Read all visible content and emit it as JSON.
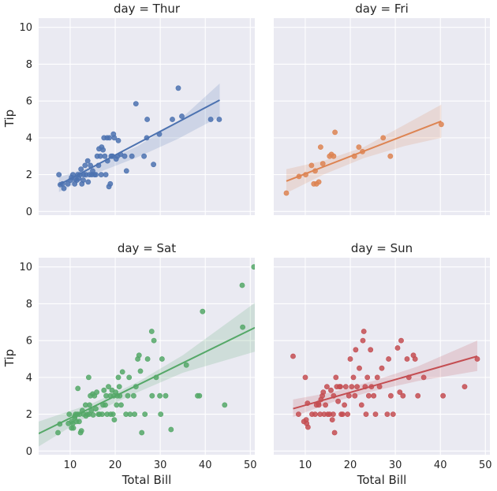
{
  "chart_data": {
    "type": "scatter",
    "xlabel": "Total Bill",
    "ylabel": "Tip",
    "xlim": [
      3,
      51
    ],
    "ylim": [
      -0.2,
      10.5
    ],
    "xticks": [
      10,
      20,
      30,
      40,
      50
    ],
    "yticks": [
      0,
      2,
      4,
      6,
      8,
      10
    ],
    "grid": true,
    "panels": [
      {
        "title": "day = Thur",
        "color": "#4c72b0",
        "fit": {
          "x": [
            7.5,
            43.2
          ],
          "y": [
            1.45,
            6.05
          ]
        },
        "band": {
          "x": [
            7.5,
            16,
            25,
            34,
            43.2
          ],
          "lower": [
            1.05,
            2.1,
            2.95,
            3.95,
            5.15
          ],
          "upper": [
            1.85,
            2.55,
            3.55,
            4.9,
            6.95
          ]
        },
        "points": [
          [
            7.5,
            2
          ],
          [
            7.8,
            1.45
          ],
          [
            8.3,
            1.5
          ],
          [
            8.6,
            1.25
          ],
          [
            9.5,
            1.5
          ],
          [
            10.1,
            1.7
          ],
          [
            10.3,
            1.85
          ],
          [
            10.6,
            2.0
          ],
          [
            11.0,
            1.5
          ],
          [
            11.2,
            1.75
          ],
          [
            11.5,
            1.7
          ],
          [
            11.7,
            2.0
          ],
          [
            11.9,
            1.8
          ],
          [
            12.2,
            2.0
          ],
          [
            12.4,
            2.3
          ],
          [
            12.6,
            1.5
          ],
          [
            12.9,
            1.7
          ],
          [
            13.0,
            2.0
          ],
          [
            13.3,
            2.5
          ],
          [
            13.5,
            2.0
          ],
          [
            13.9,
            2.75
          ],
          [
            14.0,
            1.6
          ],
          [
            14.3,
            2.0
          ],
          [
            14.5,
            2.5
          ],
          [
            14.8,
            2.0
          ],
          [
            15.0,
            2.2
          ],
          [
            15.4,
            2.0
          ],
          [
            15.7,
            2.0
          ],
          [
            16.0,
            3.0
          ],
          [
            16.3,
            2.5
          ],
          [
            16.4,
            3.4
          ],
          [
            16.7,
            3.0
          ],
          [
            16.9,
            2.0
          ],
          [
            17.0,
            3.5
          ],
          [
            17.3,
            3.35
          ],
          [
            17.5,
            4.0
          ],
          [
            17.7,
            3.0
          ],
          [
            17.9,
            2.0
          ],
          [
            18.2,
            4.0
          ],
          [
            18.3,
            2.75
          ],
          [
            18.6,
            1.35
          ],
          [
            18.7,
            4.0
          ],
          [
            18.9,
            1.5
          ],
          [
            19.1,
            3.0
          ],
          [
            19.4,
            3.0
          ],
          [
            19.6,
            4.2
          ],
          [
            19.8,
            4.0
          ],
          [
            20.2,
            2.85
          ],
          [
            20.5,
            3.0
          ],
          [
            20.7,
            3.85
          ],
          [
            21.2,
            3.1
          ],
          [
            22.1,
            3.0
          ],
          [
            22.5,
            2.2
          ],
          [
            23.7,
            3.0
          ],
          [
            24.6,
            5.85
          ],
          [
            26.4,
            3.0
          ],
          [
            27.0,
            4.0
          ],
          [
            27.1,
            5.0
          ],
          [
            28.5,
            2.55
          ],
          [
            29.8,
            4.2
          ],
          [
            32.7,
            5.0
          ],
          [
            34.0,
            6.7
          ],
          [
            34.8,
            5.17
          ],
          [
            41.2,
            5.0
          ],
          [
            43.1,
            5.0
          ]
        ]
      },
      {
        "title": "day = Fri",
        "color": "#dd8452",
        "fit": {
          "x": [
            5.8,
            40.2
          ],
          "y": [
            1.65,
            4.9
          ]
        },
        "band": {
          "x": [
            5.8,
            14,
            23,
            32,
            40.2
          ],
          "lower": [
            1.0,
            2.0,
            2.9,
            3.55,
            4.0
          ],
          "upper": [
            2.3,
            2.75,
            3.5,
            4.7,
            5.8
          ]
        },
        "points": [
          [
            5.8,
            1.0
          ],
          [
            8.6,
            1.9
          ],
          [
            10.1,
            2.0
          ],
          [
            11.4,
            2.5
          ],
          [
            11.9,
            1.5
          ],
          [
            12.2,
            2.2
          ],
          [
            12.5,
            1.5
          ],
          [
            13.0,
            1.6
          ],
          [
            13.4,
            3.5
          ],
          [
            13.9,
            2.6
          ],
          [
            15.4,
            3.0
          ],
          [
            15.8,
            3.1
          ],
          [
            16.3,
            3.0
          ],
          [
            16.6,
            4.3
          ],
          [
            20.9,
            3.0
          ],
          [
            21.9,
            3.5
          ],
          [
            22.7,
            3.25
          ],
          [
            27.3,
            4.0
          ],
          [
            28.9,
            3.0
          ],
          [
            40.2,
            4.73
          ]
        ]
      },
      {
        "title": "day = Sat",
        "color": "#55a868",
        "fit": {
          "x": [
            3.0,
            51.0
          ],
          "y": [
            0.95,
            6.7
          ]
        },
        "band": {
          "x": [
            3,
            15,
            25,
            35,
            51
          ],
          "lower": [
            0.25,
            2.05,
            3.2,
            4.25,
            5.4
          ],
          "upper": [
            1.6,
            2.6,
            3.75,
            5.2,
            8.05
          ]
        },
        "points": [
          [
            7.3,
            1.0
          ],
          [
            7.7,
            1.47
          ],
          [
            9.6,
            1.5
          ],
          [
            9.8,
            2.0
          ],
          [
            10.3,
            1.6
          ],
          [
            10.3,
            1.25
          ],
          [
            10.6,
            1.5
          ],
          [
            10.7,
            1.25
          ],
          [
            11.0,
            1.8
          ],
          [
            11.0,
            1.9
          ],
          [
            11.2,
            2.0
          ],
          [
            11.4,
            1.6
          ],
          [
            11.6,
            2.0
          ],
          [
            11.7,
            3.4
          ],
          [
            12.0,
            1.6
          ],
          [
            12.1,
            2.0
          ],
          [
            12.3,
            1.0
          ],
          [
            12.5,
            1.1
          ],
          [
            12.7,
            2.2
          ],
          [
            13.0,
            2.0
          ],
          [
            13.4,
            2.5
          ],
          [
            13.5,
            1.9
          ],
          [
            13.8,
            2.0
          ],
          [
            14.1,
            4.0
          ],
          [
            14.2,
            2.0
          ],
          [
            14.3,
            2.5
          ],
          [
            14.5,
            3.0
          ],
          [
            14.7,
            2.2
          ],
          [
            15.0,
            3.1
          ],
          [
            15.1,
            1.96
          ],
          [
            15.4,
            3.0
          ],
          [
            15.7,
            2.3
          ],
          [
            15.9,
            3.2
          ],
          [
            16.3,
            2.0
          ],
          [
            16.5,
            2.0
          ],
          [
            17.1,
            2.0
          ],
          [
            17.3,
            2.5
          ],
          [
            17.5,
            3.3
          ],
          [
            17.8,
            2.5
          ],
          [
            18.0,
            3.0
          ],
          [
            18.2,
            2.0
          ],
          [
            18.5,
            3.5
          ],
          [
            18.9,
            3.0
          ],
          [
            19.0,
            2.0
          ],
          [
            19.3,
            3.3
          ],
          [
            19.5,
            2.0
          ],
          [
            19.7,
            3.0
          ],
          [
            19.8,
            1.7
          ],
          [
            20.1,
            3.2
          ],
          [
            20.3,
            2.5
          ],
          [
            20.5,
            3.0
          ],
          [
            20.7,
            4.0
          ],
          [
            20.9,
            3.5
          ],
          [
            21.0,
            3.0
          ],
          [
            21.3,
            2.5
          ],
          [
            21.6,
            4.3
          ],
          [
            22.4,
            2.0
          ],
          [
            22.8,
            3.0
          ],
          [
            23.1,
            4.0
          ],
          [
            23.3,
            2.0
          ],
          [
            24.1,
            3.0
          ],
          [
            24.3,
            2.0
          ],
          [
            24.6,
            3.5
          ],
          [
            25.0,
            5.0
          ],
          [
            25.3,
            5.2
          ],
          [
            25.6,
            4.34
          ],
          [
            25.9,
            1.0
          ],
          [
            26.6,
            2.0
          ],
          [
            27.2,
            5.0
          ],
          [
            28.1,
            6.5
          ],
          [
            28.2,
            3.0
          ],
          [
            28.6,
            6.0
          ],
          [
            29.1,
            4.0
          ],
          [
            29.9,
            3.0
          ],
          [
            30.1,
            2.0
          ],
          [
            30.4,
            5.0
          ],
          [
            31.2,
            3.0
          ],
          [
            32.4,
            1.17
          ],
          [
            35.8,
            4.67
          ],
          [
            38.3,
            3.0
          ],
          [
            38.7,
            3.0
          ],
          [
            39.4,
            7.58
          ],
          [
            44.3,
            2.5
          ],
          [
            48.3,
            6.73
          ],
          [
            48.2,
            9.0
          ],
          [
            50.8,
            10.0
          ]
        ]
      },
      {
        "title": "day = Sun",
        "color": "#c44e52",
        "fit": {
          "x": [
            7.3,
            48.2
          ],
          "y": [
            2.3,
            5.15
          ]
        },
        "band": {
          "x": [
            7.3,
            16,
            25,
            35,
            48.2
          ],
          "lower": [
            1.85,
            2.65,
            3.25,
            3.8,
            4.35
          ],
          "upper": [
            2.8,
            3.2,
            3.8,
            4.6,
            6.0
          ]
        },
        "points": [
          [
            7.3,
            5.15
          ],
          [
            8.5,
            2.0
          ],
          [
            9.7,
            1.6
          ],
          [
            10.0,
            4.0
          ],
          [
            10.2,
            1.7
          ],
          [
            10.3,
            1.5
          ],
          [
            10.5,
            2.6
          ],
          [
            10.6,
            1.3
          ],
          [
            11.5,
            2.0
          ],
          [
            12.2,
            2.0
          ],
          [
            12.5,
            2.5
          ],
          [
            12.9,
            2.6
          ],
          [
            13.0,
            2.5
          ],
          [
            13.3,
            2.0
          ],
          [
            13.5,
            2.8
          ],
          [
            13.8,
            3.0
          ],
          [
            14.0,
            3.2
          ],
          [
            14.2,
            2.0
          ],
          [
            14.5,
            2.5
          ],
          [
            14.8,
            3.5
          ],
          [
            15.0,
            2.0
          ],
          [
            15.4,
            2.0
          ],
          [
            15.7,
            3.3
          ],
          [
            16.0,
            1.7
          ],
          [
            16.2,
            2.0
          ],
          [
            16.3,
            3.0
          ],
          [
            16.5,
            1.0
          ],
          [
            16.8,
            4.0
          ],
          [
            17.0,
            3.5
          ],
          [
            17.3,
            2.7
          ],
          [
            17.6,
            3.5
          ],
          [
            17.8,
            3.5
          ],
          [
            18.0,
            2.0
          ],
          [
            18.3,
            2.0
          ],
          [
            18.7,
            2.5
          ],
          [
            19.0,
            3.5
          ],
          [
            19.4,
            2.0
          ],
          [
            19.7,
            3.0
          ],
          [
            20.0,
            5.0
          ],
          [
            20.3,
            3.5
          ],
          [
            20.7,
            4.0
          ],
          [
            21.0,
            3.0
          ],
          [
            21.2,
            5.5
          ],
          [
            21.5,
            3.5
          ],
          [
            22.0,
            4.5
          ],
          [
            22.5,
            2.5
          ],
          [
            22.8,
            6.0
          ],
          [
            23.0,
            6.5
          ],
          [
            23.3,
            3.5
          ],
          [
            23.5,
            2.0
          ],
          [
            23.8,
            4.0
          ],
          [
            24.1,
            3.0
          ],
          [
            24.5,
            5.5
          ],
          [
            24.7,
            3.5
          ],
          [
            25.2,
            3.0
          ],
          [
            25.6,
            2.0
          ],
          [
            26.0,
            4.0
          ],
          [
            26.5,
            3.5
          ],
          [
            27.0,
            4.5
          ],
          [
            28.2,
            2.0
          ],
          [
            28.5,
            5.0
          ],
          [
            29.0,
            3.0
          ],
          [
            29.5,
            2.0
          ],
          [
            30.5,
            5.6
          ],
          [
            31.0,
            3.2
          ],
          [
            31.3,
            6.0
          ],
          [
            31.7,
            3.0
          ],
          [
            32.6,
            5.0
          ],
          [
            33.0,
            4.0
          ],
          [
            34.0,
            5.2
          ],
          [
            34.4,
            5.0
          ],
          [
            35.0,
            3.0
          ],
          [
            36.3,
            4.0
          ],
          [
            40.6,
            3.0
          ],
          [
            45.4,
            3.5
          ],
          [
            48.2,
            5.0
          ]
        ]
      }
    ]
  }
}
